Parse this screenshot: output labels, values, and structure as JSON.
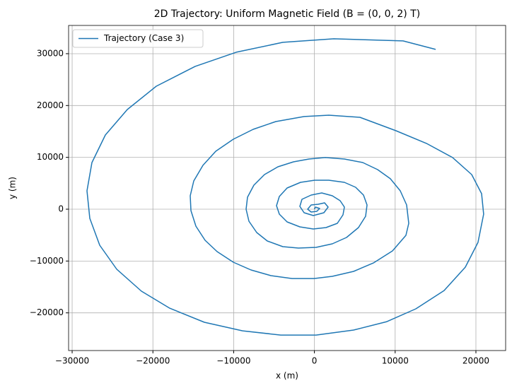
{
  "chart_data": {
    "type": "line",
    "title": "2D Trajectory: Uniform Magnetic Field (B = (0, 0, 2) T)",
    "x_label": "x (m)",
    "y_label": "y (m)",
    "xlim": [
      -30440,
      23680
    ],
    "ylim": [
      -27270,
      35450
    ],
    "xticks": [
      {
        "value": -30000,
        "label": "−30000"
      },
      {
        "value": -20000,
        "label": "−20000"
      },
      {
        "value": -10000,
        "label": "−10000"
      },
      0,
      10000,
      20000
    ],
    "yticks": [
      {
        "value": -20000,
        "label": "−20000"
      },
      {
        "value": -10000,
        "label": "−10000"
      },
      0,
      10000,
      20000,
      30000
    ],
    "grid": true,
    "legend": "upper-left",
    "series": [
      {
        "name": "Trajectory (Case 3)",
        "color": "#1f77b4",
        "x": [
          0,
          120,
          650,
          300,
          -400,
          -840,
          -400,
          470,
          1260,
          1700,
          1170,
          -140,
          -1280,
          -1800,
          -1540,
          -400,
          910,
          2220,
          3190,
          3710,
          3540,
          2840,
          1440,
          -140,
          -1800,
          -3380,
          -4340,
          -4690,
          -4340,
          -3380,
          -1720,
          40,
          1790,
          3710,
          5110,
          6080,
          6520,
          6340,
          5460,
          3980,
          2220,
          210,
          -1980,
          -3910,
          -5830,
          -7150,
          -8110,
          -8460,
          -8280,
          -7500,
          -6180,
          -4520,
          -2590,
          -670,
          1350,
          3710,
          5990,
          7830,
          9410,
          10630,
          11420,
          11680,
          11330,
          9670,
          7300,
          4850,
          2220,
          -50,
          -2770,
          -5390,
          -7850,
          -10040,
          -12050,
          -13540,
          -14680,
          -15290,
          -15380,
          -14940,
          -13800,
          -12220,
          -10040,
          -7580,
          -4780,
          -1280,
          1790,
          5640,
          10110,
          13870,
          17110,
          19480,
          20700,
          20960,
          20260,
          18690,
          16060,
          12560,
          8970,
          4850,
          210,
          -4170,
          -8900,
          -13630,
          -17920,
          -21420,
          -24480,
          -26590,
          -27810,
          -28160,
          -27550,
          -25890,
          -23170,
          -19580,
          -14764,
          -9685,
          -3906,
          2400,
          10980,
          15010
        ],
        "values": [
          0,
          410,
          140,
          -410,
          -550,
          0,
          820,
          950,
          1230,
          410,
          -680,
          -1230,
          -680,
          550,
          1910,
          2730,
          3140,
          2590,
          1640,
          410,
          -1090,
          -2730,
          -3550,
          -3820,
          -3410,
          -2460,
          -950,
          680,
          2460,
          4090,
          5180,
          5590,
          5590,
          5180,
          4230,
          2730,
          820,
          -1360,
          -3550,
          -5460,
          -6680,
          -7370,
          -7500,
          -7230,
          -6140,
          -4500,
          -2320,
          0,
          2320,
          4640,
          6680,
          8180,
          9140,
          9680,
          9960,
          9680,
          9000,
          7640,
          5870,
          3550,
          820,
          -2730,
          -5050,
          -8050,
          -10370,
          -12000,
          -12960,
          -13370,
          -13370,
          -12820,
          -11730,
          -10230,
          -8180,
          -6000,
          -3270,
          -270,
          2590,
          5460,
          8460,
          11180,
          13500,
          15410,
          16910,
          17870,
          18140,
          17730,
          15140,
          12690,
          9960,
          6680,
          3000,
          -950,
          -6410,
          -11180,
          -15690,
          -19230,
          -21690,
          -23320,
          -24280,
          -24280,
          -23460,
          -21820,
          -19100,
          -15820,
          -11590,
          -6960,
          -1770,
          3550,
          9000,
          14320,
          19230,
          23730,
          27550,
          30280,
          32190,
          32870,
          32460,
          30830
        ]
      }
    ]
  }
}
